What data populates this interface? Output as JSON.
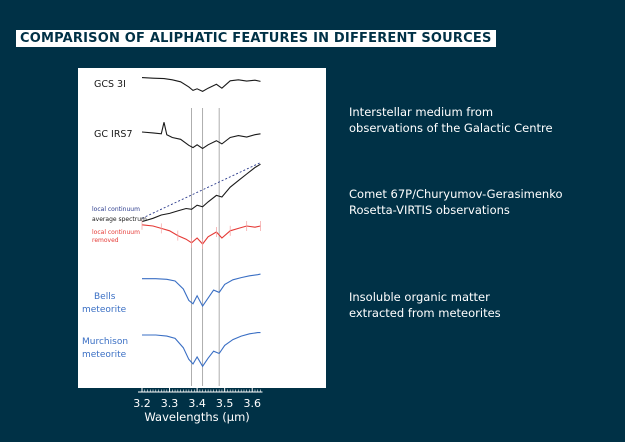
{
  "title": "COMPARISON OF ALIPHATIC FEATURES IN DIFFERENT SOURCES",
  "descriptions": {
    "ism": [
      "Interstellar medium from",
      "observations of the Galactic Centre"
    ],
    "comet": [
      "Comet 67P/Churyumov-Gerasimenko",
      "Rosetta-VIRTIS observations"
    ],
    "iom": [
      "Insoluble organic matter",
      "extracted from meteorites"
    ]
  },
  "colors": {
    "background": "#003146",
    "black_spectrum": "#1a1a1a",
    "continuum": "#2a3a8c",
    "removed": "#e53935",
    "meteorite": "#3a6fc4"
  },
  "chart_data": {
    "type": "line",
    "xlabel": "Wavelengths (μm)",
    "xlim": [
      3.2,
      3.65
    ],
    "xticks": [
      "3.2",
      "3.3",
      "3.4",
      "3.5",
      "3.6"
    ],
    "band_lines": [
      3.38,
      3.42,
      3.48
    ],
    "series": [
      {
        "name": "GCS 3I",
        "color": "#1a1a1a",
        "x": [
          3.2,
          3.24,
          3.28,
          3.31,
          3.34,
          3.37,
          3.385,
          3.4,
          3.42,
          3.44,
          3.47,
          3.49,
          3.52,
          3.55,
          3.58,
          3.61,
          3.63
        ],
        "y": [
          0.95,
          0.93,
          0.92,
          0.88,
          0.82,
          0.66,
          0.55,
          0.6,
          0.52,
          0.62,
          0.74,
          0.62,
          0.85,
          0.88,
          0.84,
          0.87,
          0.83
        ]
      },
      {
        "name": "GC IRS7",
        "color": "#1a1a1a",
        "x": [
          3.2,
          3.24,
          3.27,
          3.28,
          3.29,
          3.31,
          3.34,
          3.37,
          3.385,
          3.4,
          3.42,
          3.44,
          3.47,
          3.49,
          3.52,
          3.55,
          3.58,
          3.61,
          3.63
        ],
        "y": [
          0.74,
          0.72,
          0.7,
          0.95,
          0.68,
          0.62,
          0.58,
          0.45,
          0.4,
          0.46,
          0.38,
          0.46,
          0.55,
          0.48,
          0.62,
          0.66,
          0.63,
          0.68,
          0.7
        ]
      },
      {
        "name": "average spectrum",
        "color": "#1a1a1a",
        "x": [
          3.2,
          3.24,
          3.27,
          3.3,
          3.33,
          3.36,
          3.38,
          3.4,
          3.42,
          3.44,
          3.47,
          3.49,
          3.52,
          3.55,
          3.58,
          3.61,
          3.63
        ],
        "y": [
          0.2,
          0.24,
          0.28,
          0.3,
          0.33,
          0.36,
          0.35,
          0.4,
          0.38,
          0.44,
          0.52,
          0.5,
          0.62,
          0.7,
          0.78,
          0.86,
          0.9
        ]
      },
      {
        "name": "local continuum",
        "color": "#2a3a8c",
        "x": [
          3.2,
          3.63
        ],
        "y": [
          0.24,
          0.92
        ]
      },
      {
        "name": "local continuum removed",
        "color": "#e53935",
        "x": [
          3.2,
          3.24,
          3.27,
          3.3,
          3.33,
          3.36,
          3.38,
          3.4,
          3.42,
          3.44,
          3.47,
          3.49,
          3.52,
          3.55,
          3.58,
          3.61,
          3.63
        ],
        "y": [
          0.82,
          0.8,
          0.76,
          0.72,
          0.64,
          0.58,
          0.52,
          0.6,
          0.5,
          0.62,
          0.7,
          0.6,
          0.72,
          0.76,
          0.8,
          0.78,
          0.8
        ]
      },
      {
        "name": "Bells meteorite",
        "color": "#3a6fc4",
        "x": [
          3.2,
          3.25,
          3.29,
          3.32,
          3.35,
          3.37,
          3.385,
          3.4,
          3.42,
          3.44,
          3.46,
          3.48,
          3.5,
          3.53,
          3.56,
          3.59,
          3.62,
          3.63
        ],
        "y": [
          0.9,
          0.9,
          0.89,
          0.86,
          0.72,
          0.52,
          0.46,
          0.6,
          0.42,
          0.56,
          0.7,
          0.66,
          0.8,
          0.88,
          0.92,
          0.95,
          0.97,
          0.98
        ]
      },
      {
        "name": "Murchison meteorite",
        "color": "#3a6fc4",
        "x": [
          3.2,
          3.25,
          3.29,
          3.32,
          3.35,
          3.37,
          3.385,
          3.4,
          3.42,
          3.44,
          3.46,
          3.48,
          3.5,
          3.53,
          3.56,
          3.59,
          3.62,
          3.63
        ],
        "y": [
          0.88,
          0.88,
          0.86,
          0.82,
          0.66,
          0.46,
          0.38,
          0.5,
          0.34,
          0.48,
          0.6,
          0.56,
          0.7,
          0.8,
          0.86,
          0.9,
          0.92,
          0.92
        ]
      }
    ],
    "labels": {
      "gcs3i": "GCS 3I",
      "gcirs7": "GC IRS7",
      "local_continuum": "local continuum",
      "average_spectrum": "average spectrum",
      "removed_line1": "local continuum",
      "removed_line2": "removed",
      "bells_line1": "Bells",
      "bells_line2": "meteorite",
      "murchison_line1": "Murchison",
      "murchison_line2": "meteorite"
    }
  }
}
